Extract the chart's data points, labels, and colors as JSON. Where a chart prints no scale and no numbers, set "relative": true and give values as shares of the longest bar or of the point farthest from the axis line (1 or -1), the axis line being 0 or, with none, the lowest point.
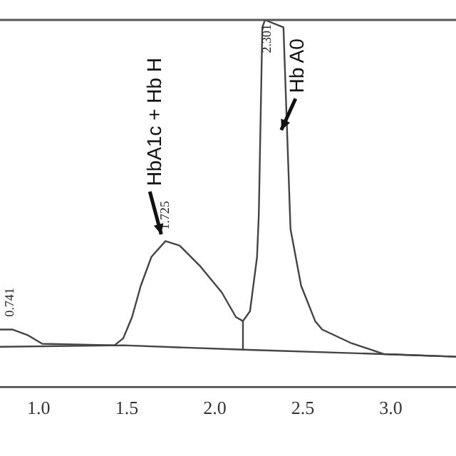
{
  "chart_data": {
    "type": "line",
    "relative": true,
    "x": [
      0.78,
      0.85,
      0.94,
      1.02,
      1.43,
      1.48,
      1.53,
      1.58,
      1.64,
      1.72,
      1.8,
      1.92,
      2.04,
      2.12,
      2.16,
      2.2,
      2.24,
      2.25,
      2.27,
      2.285,
      2.39,
      2.43,
      2.49,
      2.57,
      2.61,
      2.77,
      2.96,
      3.37
    ],
    "series": [
      {
        "color": "#444444",
        "values": [
          0.156,
          0.156,
          0.14,
          0.117,
          0.113,
          0.132,
          0.19,
          0.276,
          0.354,
          0.397,
          0.385,
          0.327,
          0.257,
          0.19,
          0.179,
          0.206,
          0.354,
          0.47,
          0.98,
          1,
          0.98,
          0.43,
          0.276,
          0.179,
          0.156,
          0.12,
          0.089,
          0.082
        ]
      },
      {
        "color": "#444444",
        "x": [
          0.78,
          1.48,
          2.16,
          2.96,
          3.37
        ],
        "values": [
          0.109,
          0.113,
          0.101,
          0.089,
          0.082
        ]
      },
      {
        "color": "#444444",
        "x": [
          2.16,
          2.16
        ],
        "values": [
          0.101,
          0.179
        ]
      }
    ],
    "xlim": [
      0.78,
      3.37
    ],
    "xticks": [
      {
        "value": 1,
        "label": "1.0"
      },
      {
        "value": 1.5,
        "label": "1.5"
      },
      {
        "value": 2,
        "label": "2.0"
      },
      {
        "value": 2.5,
        "label": "2.5"
      },
      {
        "value": 3,
        "label": "3.0"
      }
    ],
    "grid": false,
    "marker": "none",
    "line_style": "solid",
    "legend": false,
    "annotations": [
      {
        "text": "0.741",
        "x": 0.84,
        "y": 0.16
      },
      {
        "text": "1.725",
        "x": 1.725,
        "y": 0.397
      },
      {
        "text": "2.301",
        "x": 2.301,
        "y": 1
      },
      {
        "text": "HbA1c + Hb H",
        "x": 1.72,
        "y": 0.4
      },
      {
        "text": "Hb A0",
        "x": 2.41,
        "y": 0.7
      }
    ]
  }
}
